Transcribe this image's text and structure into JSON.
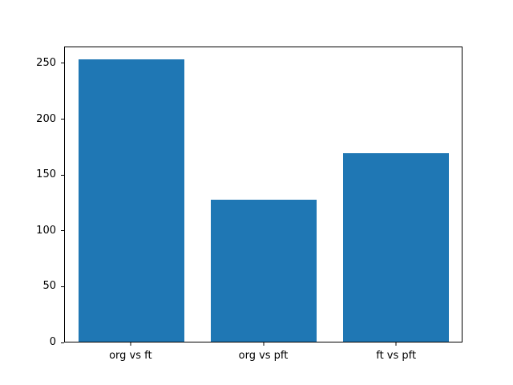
{
  "chart_data": {
    "type": "bar",
    "categories": [
      "org vs ft",
      "org vs pft",
      "ft vs pft"
    ],
    "values": [
      254,
      128,
      170
    ],
    "title": "",
    "xlabel": "",
    "ylabel": "",
    "ylim": [
      0,
      265
    ],
    "yticks": [
      0,
      50,
      100,
      150,
      200,
      250
    ],
    "bar_color": "#1f77b4",
    "axis_color": "#000000",
    "background_color": "#ffffff",
    "grid": false,
    "legend": "none"
  }
}
